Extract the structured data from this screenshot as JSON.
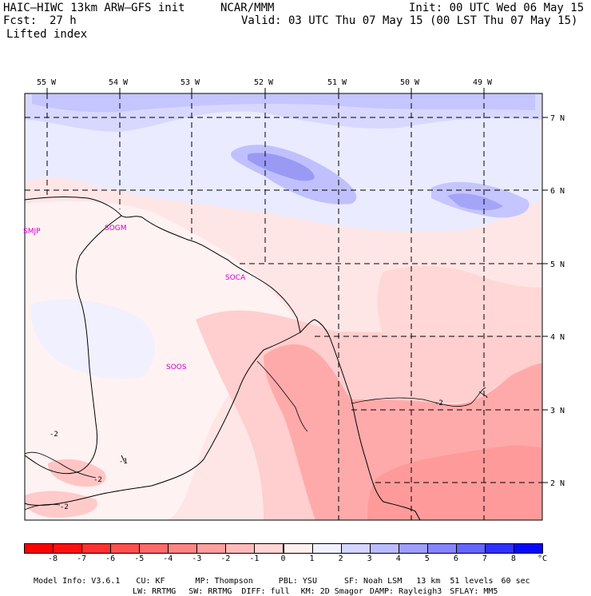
{
  "header": {
    "model": "HAIC–HIWC 13km ARW–GFS init",
    "org": "NCAR/MMM",
    "init": "Init: 00 UTC Wed 06 May 15",
    "fcst_label": "Fcst:",
    "fcst_value": "27 h",
    "valid": "Valid: 03 UTC Thu 07 May 15 (00 LST Thu 07 May 15)",
    "field": "Lifted index"
  },
  "map": {
    "lon_labels": [
      "55 W",
      "54 W",
      "53 W",
      "52 W",
      "51 W",
      "50 W",
      "49 W"
    ],
    "lat_labels": [
      "7 N",
      "6 N",
      "5 N",
      "4 N",
      "3 N",
      "2 N"
    ],
    "stations": [
      "SMJP",
      "SOGM",
      "SOCA",
      "SOOS"
    ],
    "contour_labels": [
      "-2",
      "-2",
      "-2",
      "-2",
      "-1"
    ]
  },
  "colorbar": {
    "labels": [
      "-8",
      "-7",
      "-6",
      "-5",
      "-4",
      "-3",
      "-2",
      "-1",
      "0",
      "1",
      "2",
      "3",
      "4",
      "5",
      "6",
      "7",
      "8"
    ],
    "unit": "°C",
    "colors": [
      "#ff1010",
      "#ff3030",
      "#ff4f4f",
      "#ff6a6a",
      "#ff8585",
      "#ff9f9f",
      "#ffbbbb",
      "#ffd5d5",
      "#fff0f0",
      "#f0f0ff",
      "#d5d5ff",
      "#bbbbff",
      "#9f9fff",
      "#8585ff",
      "#6565ff",
      "#3030ff",
      "#0808ff"
    ]
  },
  "info": {
    "line1": [
      "Model Info: V3.6.1",
      "CU: KF",
      "MP: Thompson",
      "PBL: YSU",
      "SF: Noah LSM",
      "13 km",
      "51 levels",
      "60 sec"
    ],
    "line2": [
      "LW: RRTMG",
      "SW: RRTMG",
      "DIFF: full",
      "KM: 2D Smagor",
      "DAMP: Rayleigh3",
      "SFLAY: MM5"
    ]
  }
}
